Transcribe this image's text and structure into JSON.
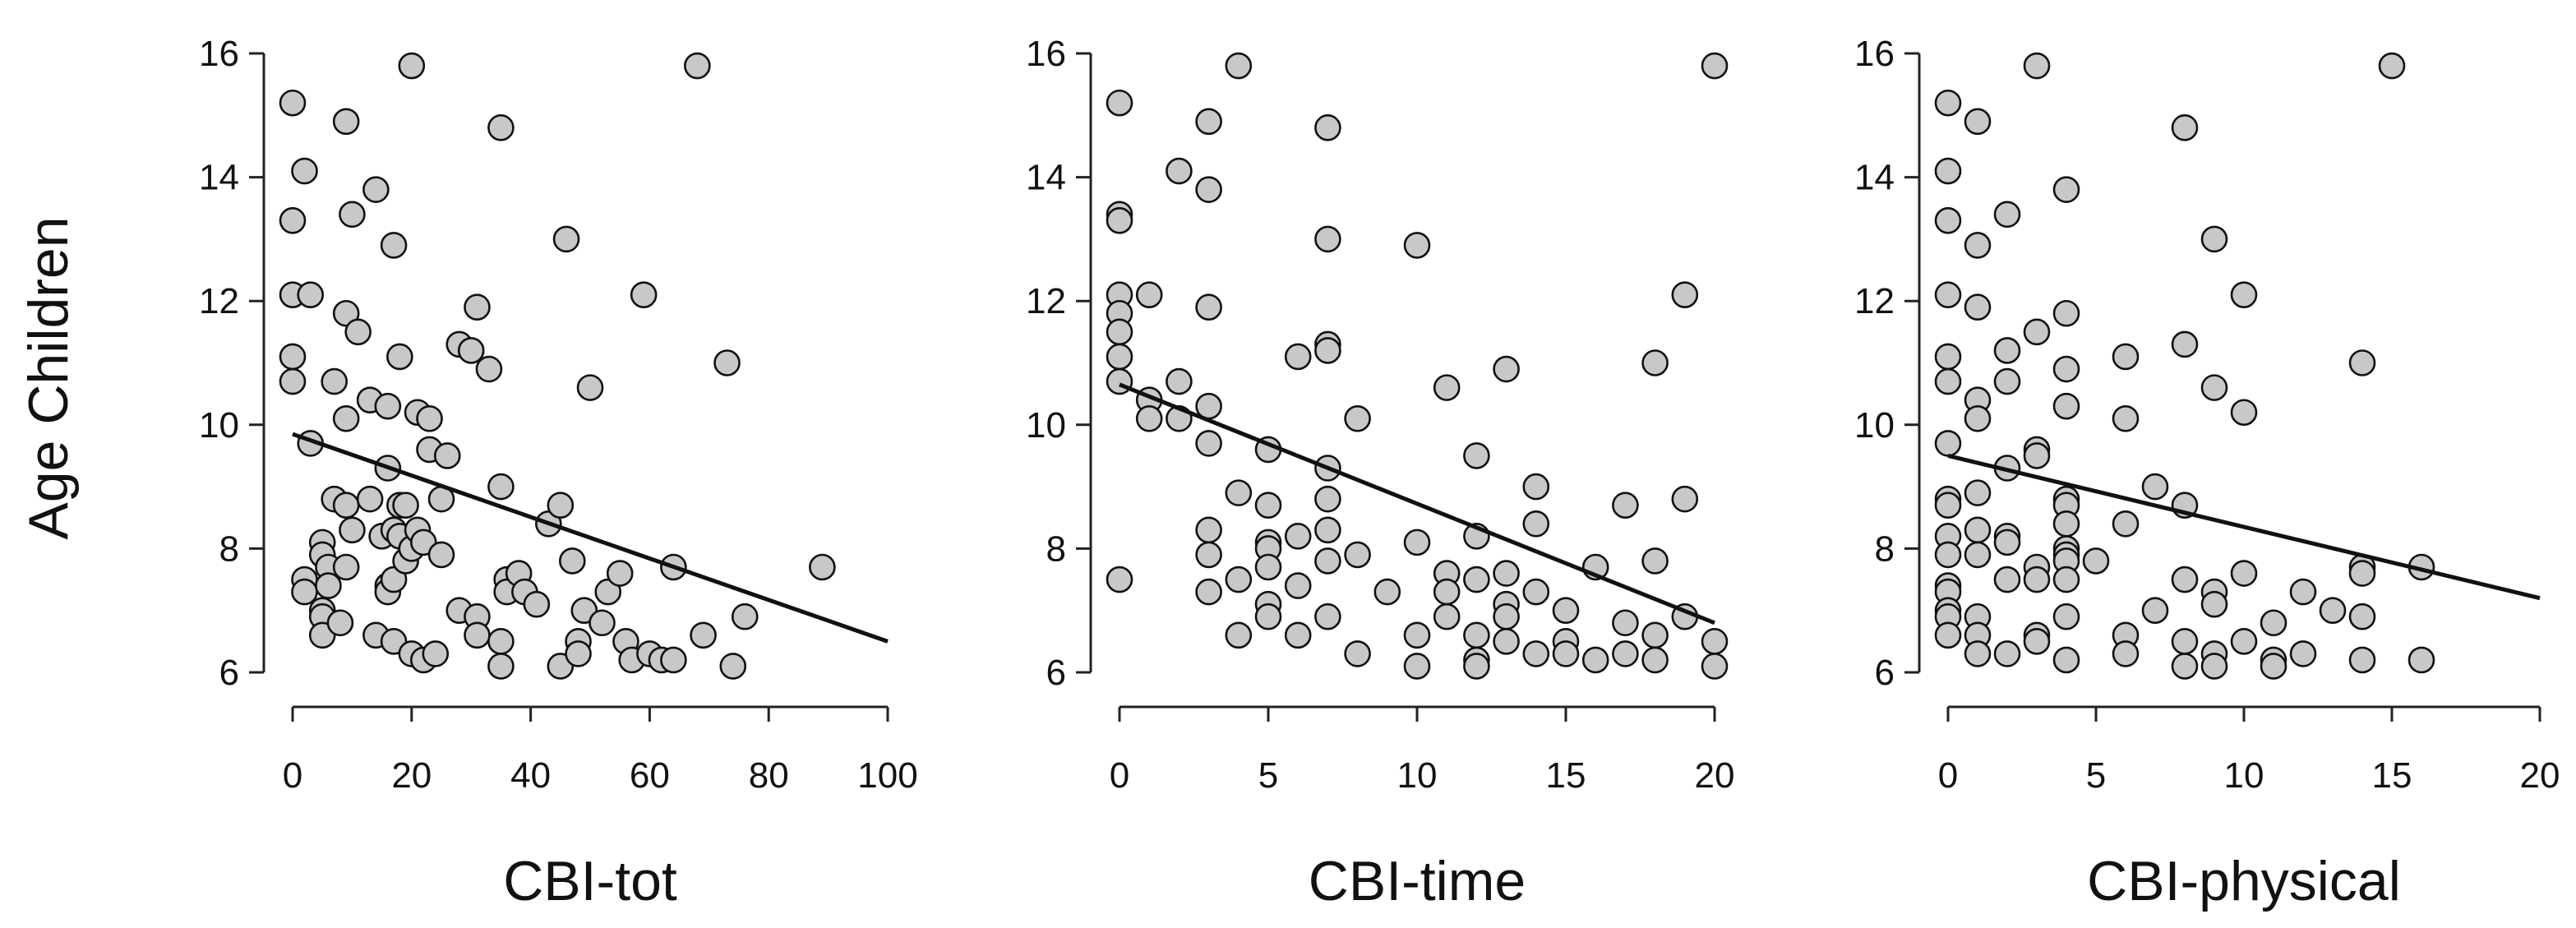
{
  "figure": {
    "ylabel": "Age Children",
    "point_fill": "#c8c8c8",
    "point_stroke": "#111111",
    "line_color": "#111111"
  },
  "chart_data": [
    {
      "type": "scatter",
      "xlabel": "CBI-tot",
      "ylabel": "Age Children",
      "xlim": [
        0,
        100
      ],
      "ylim": [
        6,
        16
      ],
      "xticks": [
        0,
        20,
        40,
        60,
        80,
        100
      ],
      "yticks": [
        6,
        8,
        10,
        12,
        14,
        16
      ],
      "regression": {
        "x": [
          0,
          100
        ],
        "y": [
          9.85,
          6.5
        ]
      },
      "points": [
        [
          0,
          15.2
        ],
        [
          0,
          13.3
        ],
        [
          0,
          12.1
        ],
        [
          0,
          11.1
        ],
        [
          0,
          10.7
        ],
        [
          2,
          14.1
        ],
        [
          3,
          12.1
        ],
        [
          3,
          9.7
        ],
        [
          2,
          7.5
        ],
        [
          2,
          7.3
        ],
        [
          5,
          8.1
        ],
        [
          5,
          7.9
        ],
        [
          5,
          7.0
        ],
        [
          5,
          6.9
        ],
        [
          5,
          6.6
        ],
        [
          6,
          7.7
        ],
        [
          6,
          7.4
        ],
        [
          7,
          8.8
        ],
        [
          7,
          10.7
        ],
        [
          8,
          6.8
        ],
        [
          9,
          14.9
        ],
        [
          9,
          11.8
        ],
        [
          9,
          10.1
        ],
        [
          9,
          8.7
        ],
        [
          9,
          7.7
        ],
        [
          10,
          13.4
        ],
        [
          10,
          8.3
        ],
        [
          11,
          11.5
        ],
        [
          13,
          10.4
        ],
        [
          13,
          8.8
        ],
        [
          14,
          13.8
        ],
        [
          14,
          6.6
        ],
        [
          15,
          8.2
        ],
        [
          16,
          10.3
        ],
        [
          16,
          9.3
        ],
        [
          16,
          7.4
        ],
        [
          16,
          7.3
        ],
        [
          17,
          12.9
        ],
        [
          17,
          8.3
        ],
        [
          17,
          7.5
        ],
        [
          17,
          6.5
        ],
        [
          18,
          11.1
        ],
        [
          18,
          8.7
        ],
        [
          18,
          8.2
        ],
        [
          19,
          8.7
        ],
        [
          19,
          7.8
        ],
        [
          20,
          15.8
        ],
        [
          20,
          8.0
        ],
        [
          20,
          6.3
        ],
        [
          21,
          10.2
        ],
        [
          21,
          8.3
        ],
        [
          22,
          8.1
        ],
        [
          22,
          6.2
        ],
        [
          23,
          10.1
        ],
        [
          23,
          9.6
        ],
        [
          24,
          6.3
        ],
        [
          25,
          8.8
        ],
        [
          25,
          7.9
        ],
        [
          26,
          9.5
        ],
        [
          28,
          11.3
        ],
        [
          28,
          7.0
        ],
        [
          30,
          11.2
        ],
        [
          31,
          11.9
        ],
        [
          31,
          6.9
        ],
        [
          31,
          6.6
        ],
        [
          33,
          10.9
        ],
        [
          35,
          14.8
        ],
        [
          35,
          9.0
        ],
        [
          35,
          6.5
        ],
        [
          35,
          6.1
        ],
        [
          36,
          7.5
        ],
        [
          36,
          7.3
        ],
        [
          38,
          7.6
        ],
        [
          39,
          7.3
        ],
        [
          41,
          7.1
        ],
        [
          43,
          8.4
        ],
        [
          45,
          8.7
        ],
        [
          45,
          6.1
        ],
        [
          46,
          13.0
        ],
        [
          47,
          7.8
        ],
        [
          48,
          6.5
        ],
        [
          48,
          6.3
        ],
        [
          49,
          7.0
        ],
        [
          50,
          10.6
        ],
        [
          52,
          6.8
        ],
        [
          53,
          7.3
        ],
        [
          55,
          7.6
        ],
        [
          56,
          6.5
        ],
        [
          57,
          6.2
        ],
        [
          59,
          12.1
        ],
        [
          60,
          6.3
        ],
        [
          62,
          6.2
        ],
        [
          64,
          7.7
        ],
        [
          64,
          6.2
        ],
        [
          68,
          15.8
        ],
        [
          69,
          6.6
        ],
        [
          73,
          11.0
        ],
        [
          74,
          6.1
        ],
        [
          76,
          6.9
        ],
        [
          89,
          7.7
        ]
      ]
    },
    {
      "type": "scatter",
      "xlabel": "CBI-time",
      "ylabel": "Age Children",
      "xlim": [
        0,
        20
      ],
      "ylim": [
        6,
        16
      ],
      "xticks": [
        0,
        5,
        10,
        15,
        20
      ],
      "yticks": [
        6,
        8,
        10,
        12,
        14,
        16
      ],
      "regression": {
        "x": [
          0,
          20
        ],
        "y": [
          10.65,
          6.8
        ]
      },
      "points": [
        [
          0,
          15.2
        ],
        [
          0,
          13.4
        ],
        [
          0,
          13.3
        ],
        [
          0,
          12.1
        ],
        [
          0,
          11.8
        ],
        [
          0,
          11.5
        ],
        [
          0,
          11.1
        ],
        [
          0,
          10.7
        ],
        [
          0,
          7.5
        ],
        [
          1,
          12.1
        ],
        [
          1,
          10.4
        ],
        [
          1,
          10.1
        ],
        [
          2,
          14.1
        ],
        [
          2,
          10.7
        ],
        [
          2,
          10.1
        ],
        [
          3,
          14.9
        ],
        [
          3,
          13.8
        ],
        [
          3,
          11.9
        ],
        [
          3,
          10.3
        ],
        [
          3,
          9.7
        ],
        [
          3,
          8.3
        ],
        [
          3,
          7.9
        ],
        [
          3,
          7.3
        ],
        [
          4,
          15.8
        ],
        [
          4,
          8.9
        ],
        [
          4,
          7.5
        ],
        [
          4,
          6.6
        ],
        [
          5,
          9.6
        ],
        [
          5,
          8.7
        ],
        [
          5,
          8.1
        ],
        [
          5,
          8.0
        ],
        [
          5,
          7.7
        ],
        [
          5,
          7.1
        ],
        [
          5,
          6.9
        ],
        [
          6,
          11.1
        ],
        [
          6,
          8.2
        ],
        [
          6,
          7.4
        ],
        [
          6,
          6.6
        ],
        [
          7,
          14.8
        ],
        [
          7,
          13.0
        ],
        [
          7,
          11.3
        ],
        [
          7,
          11.2
        ],
        [
          7,
          9.3
        ],
        [
          7,
          8.8
        ],
        [
          7,
          8.3
        ],
        [
          7,
          7.8
        ],
        [
          7,
          6.9
        ],
        [
          8,
          10.1
        ],
        [
          8,
          7.9
        ],
        [
          8,
          6.3
        ],
        [
          9,
          7.3
        ],
        [
          10,
          12.9
        ],
        [
          10,
          8.1
        ],
        [
          10,
          6.6
        ],
        [
          10,
          6.1
        ],
        [
          11,
          10.6
        ],
        [
          11,
          7.6
        ],
        [
          11,
          7.3
        ],
        [
          11,
          6.9
        ],
        [
          12,
          9.5
        ],
        [
          12,
          8.2
        ],
        [
          12,
          7.5
        ],
        [
          12,
          6.6
        ],
        [
          12,
          6.2
        ],
        [
          12,
          6.1
        ],
        [
          13,
          10.9
        ],
        [
          13,
          7.6
        ],
        [
          13,
          7.1
        ],
        [
          13,
          6.9
        ],
        [
          13,
          6.5
        ],
        [
          14,
          9.0
        ],
        [
          14,
          8.4
        ],
        [
          14,
          7.3
        ],
        [
          14,
          6.3
        ],
        [
          15,
          7.0
        ],
        [
          15,
          6.5
        ],
        [
          15,
          6.3
        ],
        [
          16,
          7.7
        ],
        [
          16,
          6.2
        ],
        [
          17,
          8.7
        ],
        [
          17,
          6.8
        ],
        [
          17,
          6.3
        ],
        [
          18,
          11.0
        ],
        [
          18,
          7.8
        ],
        [
          18,
          6.6
        ],
        [
          18,
          6.2
        ],
        [
          19,
          12.1
        ],
        [
          19,
          8.8
        ],
        [
          19,
          6.9
        ],
        [
          20,
          15.8
        ],
        [
          20,
          6.5
        ],
        [
          20,
          6.1
        ]
      ]
    },
    {
      "type": "scatter",
      "xlabel": "CBI-physical",
      "ylabel": "Age Children",
      "xlim": [
        0,
        20
      ],
      "ylim": [
        6,
        16
      ],
      "xticks": [
        0,
        5,
        10,
        15,
        20
      ],
      "yticks": [
        6,
        8,
        10,
        12,
        14,
        16
      ],
      "regression": {
        "x": [
          0,
          20
        ],
        "y": [
          9.5,
          7.2
        ]
      },
      "points": [
        [
          0,
          15.2
        ],
        [
          0,
          14.1
        ],
        [
          0,
          13.3
        ],
        [
          0,
          12.1
        ],
        [
          0,
          11.1
        ],
        [
          0,
          10.7
        ],
        [
          0,
          9.7
        ],
        [
          0,
          8.8
        ],
        [
          0,
          8.7
        ],
        [
          0,
          8.2
        ],
        [
          0,
          7.9
        ],
        [
          0,
          7.4
        ],
        [
          0,
          7.3
        ],
        [
          0,
          7.0
        ],
        [
          0,
          6.9
        ],
        [
          0,
          6.6
        ],
        [
          1,
          14.9
        ],
        [
          1,
          12.9
        ],
        [
          1,
          11.9
        ],
        [
          1,
          10.4
        ],
        [
          1,
          10.1
        ],
        [
          1,
          8.9
        ],
        [
          1,
          8.3
        ],
        [
          1,
          7.9
        ],
        [
          1,
          6.9
        ],
        [
          1,
          6.6
        ],
        [
          1,
          6.3
        ],
        [
          2,
          13.4
        ],
        [
          2,
          11.2
        ],
        [
          2,
          10.7
        ],
        [
          2,
          9.3
        ],
        [
          2,
          8.2
        ],
        [
          2,
          8.1
        ],
        [
          2,
          7.5
        ],
        [
          2,
          6.3
        ],
        [
          3,
          15.8
        ],
        [
          3,
          11.5
        ],
        [
          3,
          9.6
        ],
        [
          3,
          9.5
        ],
        [
          3,
          7.7
        ],
        [
          3,
          7.5
        ],
        [
          3,
          6.6
        ],
        [
          3,
          6.5
        ],
        [
          4,
          13.8
        ],
        [
          4,
          11.8
        ],
        [
          4,
          10.9
        ],
        [
          4,
          10.3
        ],
        [
          4,
          8.8
        ],
        [
          4,
          8.7
        ],
        [
          4,
          8.4
        ],
        [
          4,
          8.0
        ],
        [
          4,
          7.9
        ],
        [
          4,
          7.8
        ],
        [
          4,
          7.5
        ],
        [
          4,
          6.9
        ],
        [
          4,
          6.2
        ],
        [
          5,
          7.8
        ],
        [
          6,
          11.1
        ],
        [
          6,
          10.1
        ],
        [
          6,
          8.4
        ],
        [
          6,
          6.6
        ],
        [
          6,
          6.3
        ],
        [
          7,
          9.0
        ],
        [
          7,
          7.0
        ],
        [
          8,
          14.8
        ],
        [
          8,
          11.3
        ],
        [
          8,
          8.7
        ],
        [
          8,
          7.5
        ],
        [
          8,
          6.5
        ],
        [
          8,
          6.1
        ],
        [
          9,
          13.0
        ],
        [
          9,
          10.6
        ],
        [
          9,
          7.3
        ],
        [
          9,
          7.1
        ],
        [
          9,
          6.3
        ],
        [
          9,
          6.1
        ],
        [
          10,
          12.1
        ],
        [
          10,
          10.2
        ],
        [
          10,
          7.6
        ],
        [
          10,
          6.5
        ],
        [
          11,
          6.8
        ],
        [
          11,
          6.2
        ],
        [
          11,
          6.1
        ],
        [
          12,
          7.3
        ],
        [
          12,
          6.3
        ],
        [
          13,
          7.0
        ],
        [
          14,
          11.0
        ],
        [
          14,
          7.7
        ],
        [
          14,
          7.6
        ],
        [
          14,
          6.9
        ],
        [
          14,
          6.2
        ],
        [
          15,
          15.8
        ],
        [
          16,
          7.7
        ],
        [
          16,
          6.2
        ]
      ]
    }
  ]
}
